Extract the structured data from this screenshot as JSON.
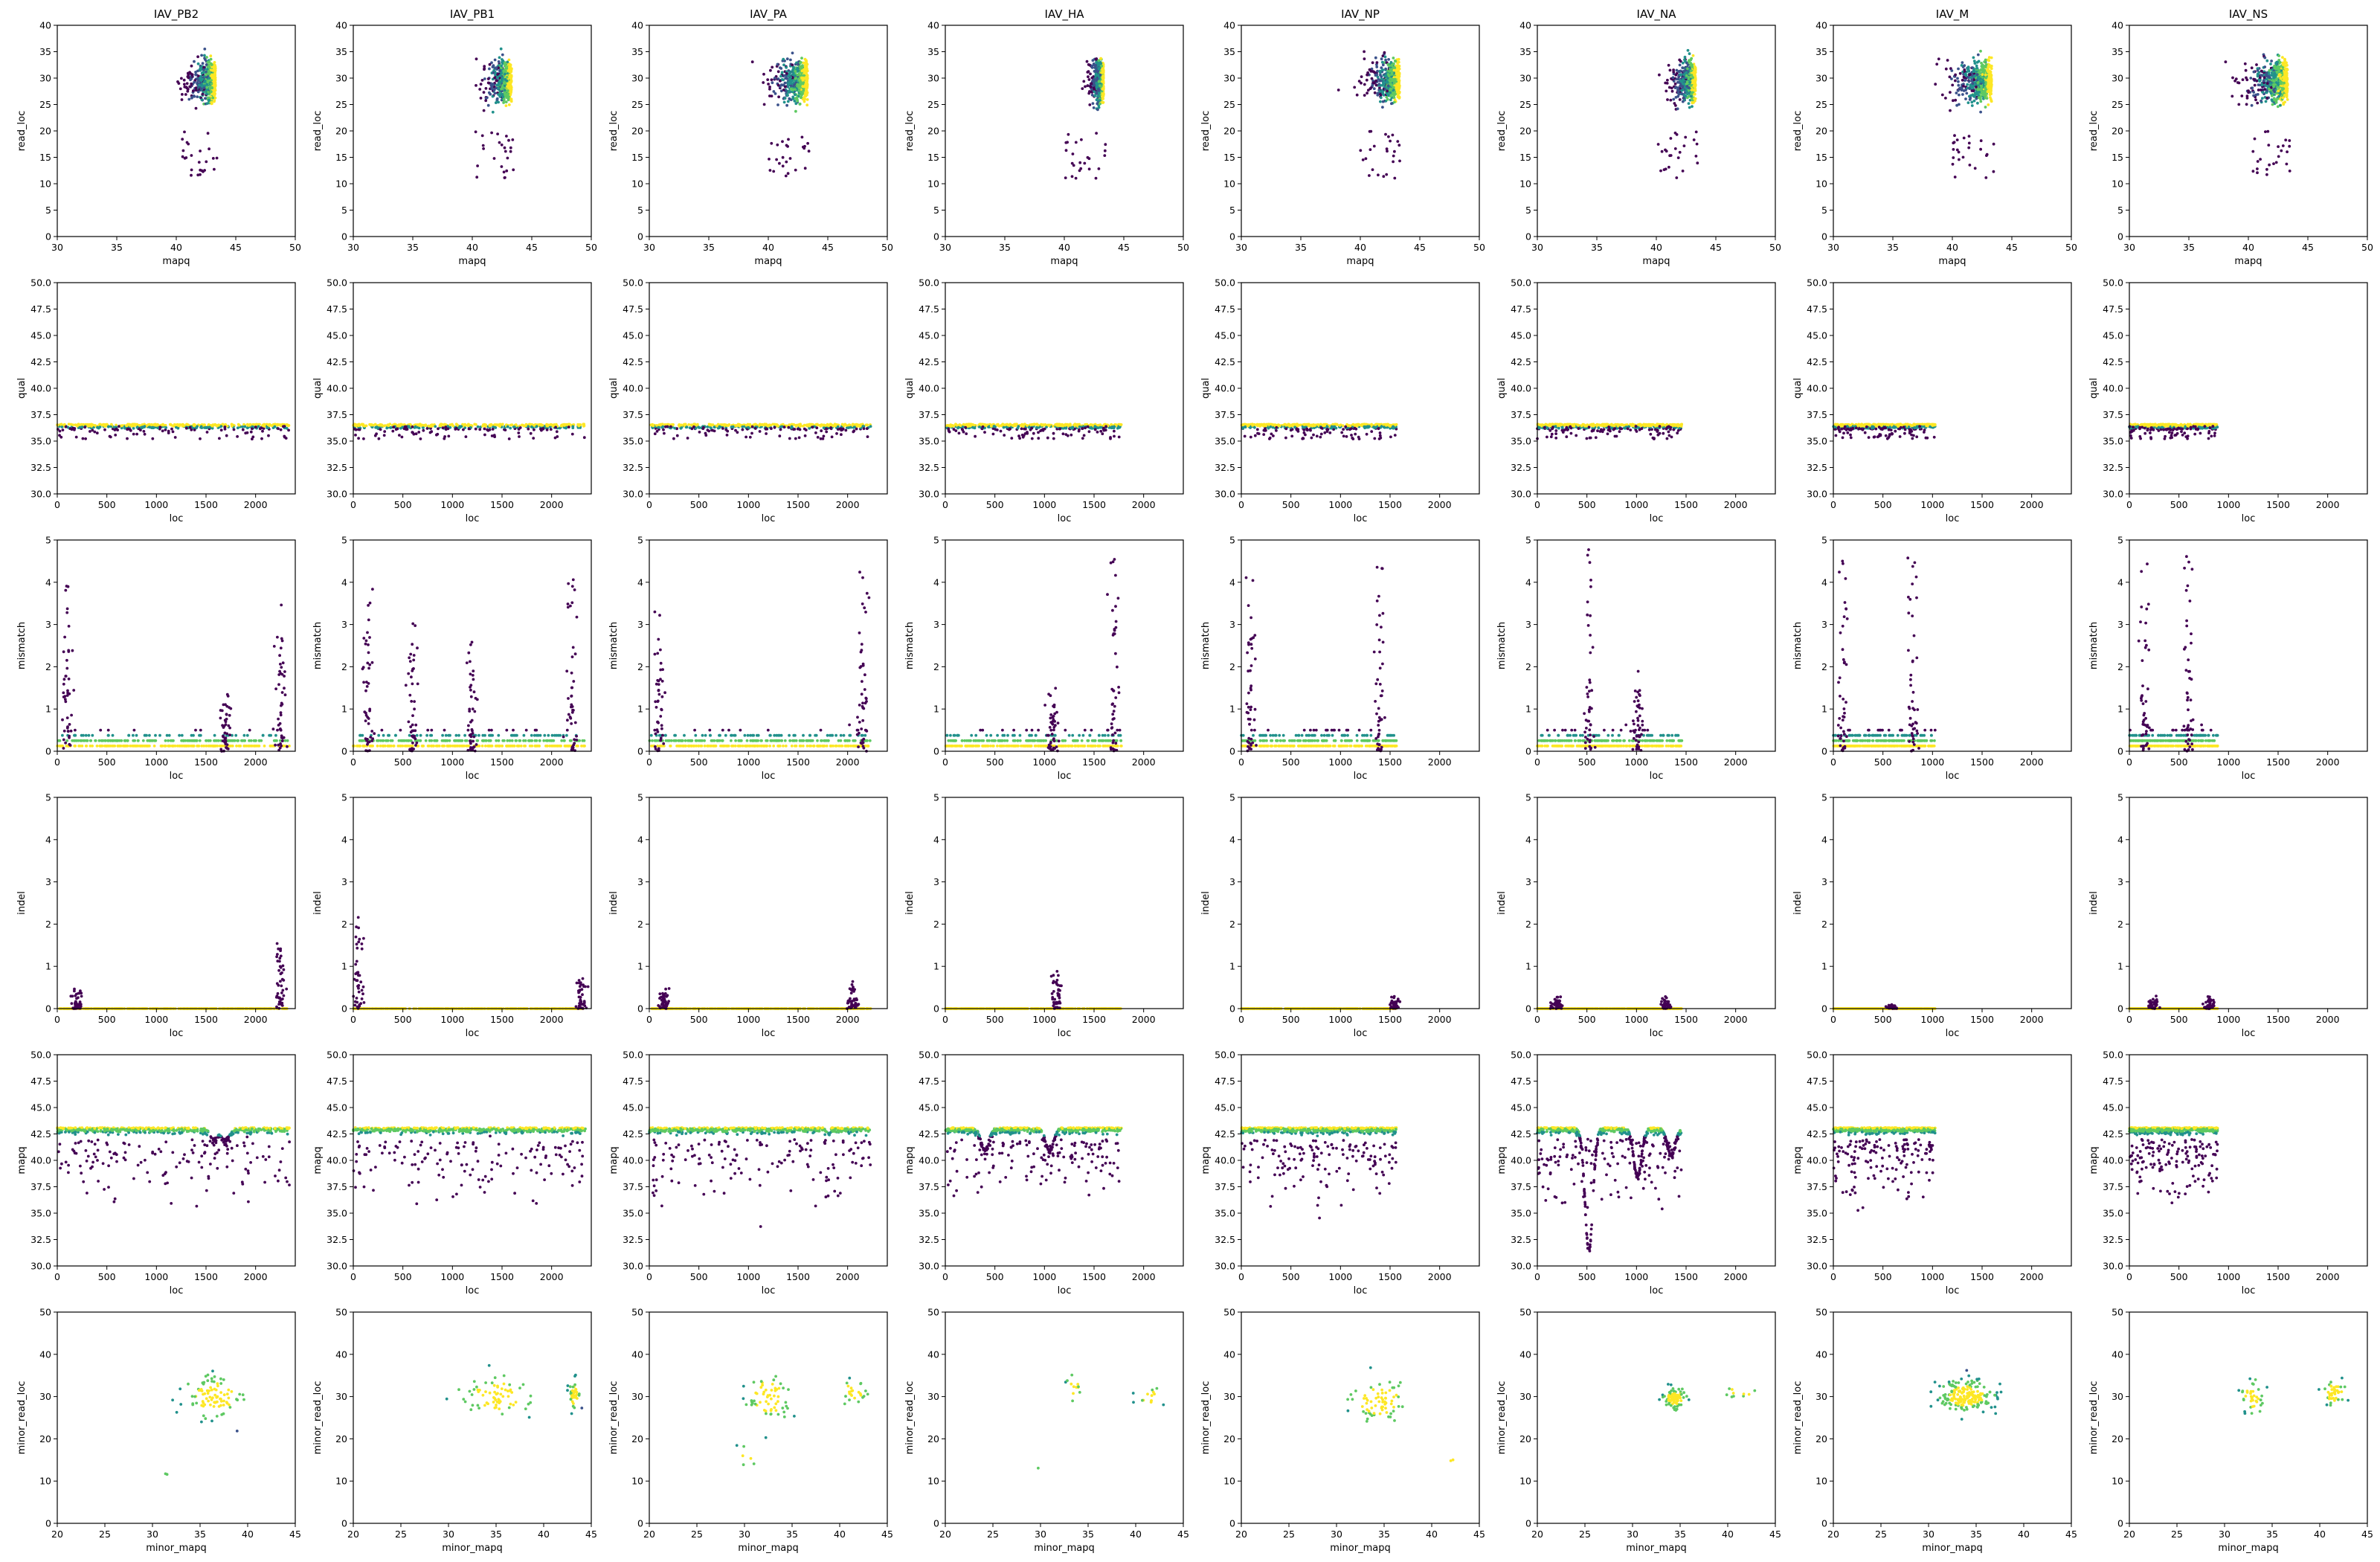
{
  "figure": {
    "columns": [
      "IAV_PB2",
      "IAV_PB1",
      "IAV_PA",
      "IAV_HA",
      "IAV_NP",
      "IAV_NA",
      "IAV_M",
      "IAV_NS"
    ],
    "segment_lengths": [
      2341,
      2341,
      2233,
      1778,
      1565,
      1458,
      1027,
      890
    ],
    "colormap": [
      "#440154",
      "#3b528b",
      "#21918c",
      "#5ec962",
      "#fde725"
    ]
  },
  "chart_data": [
    {
      "row": "read_loc vs mapq",
      "type": "scatter",
      "xlabel": "mapq",
      "ylabel": "read_loc",
      "xlim": [
        30,
        50
      ],
      "ylim": [
        0,
        40
      ],
      "xticks": [
        30,
        35,
        40,
        45,
        50
      ],
      "yticks": [
        0,
        5,
        10,
        15,
        20,
        25,
        30,
        35,
        40
      ],
      "density": "high near mapq 43, read_loc 30",
      "spread": {
        "IAV_PB2": 0.6,
        "IAV_PB1": 0.6,
        "IAV_PA": 0.8,
        "IAV_HA": 0.3,
        "IAV_NP": 0.7,
        "IAV_NA": 0.5,
        "IAV_M": 0.9,
        "IAV_NS": 0.9
      }
    },
    {
      "row": "qual vs loc",
      "type": "scatter",
      "xlabel": "loc",
      "ylabel": "qual",
      "xlim": [
        0,
        2400
      ],
      "ylim": [
        30,
        50
      ],
      "xticks": [
        0,
        500,
        1000,
        1500,
        2000
      ],
      "yticks": [
        "30.0",
        "32.5",
        "35.0",
        "37.5",
        "40.0",
        "42.5",
        "45.0",
        "47.5",
        "50.0"
      ],
      "band": [
        35.8,
        36.8
      ]
    },
    {
      "row": "mismatch vs loc",
      "type": "scatter",
      "xlabel": "loc",
      "ylabel": "mismatch",
      "xlim": [
        0,
        2400
      ],
      "ylim": [
        0,
        5
      ],
      "xticks": [
        0,
        500,
        1000,
        1500,
        2000
      ],
      "yticks": [
        0,
        1,
        2,
        3,
        4,
        5
      ],
      "peaks": {
        "IAV_PB2": [
          [
            100,
            4.5
          ],
          [
            1700,
            1.4
          ],
          [
            2250,
            3.8
          ]
        ],
        "IAV_PB1": [
          [
            150,
            4.5
          ],
          [
            600,
            3.5
          ],
          [
            1200,
            3.0
          ],
          [
            2200,
            4.2
          ]
        ],
        "IAV_PA": [
          [
            100,
            3.8
          ],
          [
            2150,
            4.8
          ]
        ],
        "IAV_HA": [
          [
            1080,
            1.5
          ],
          [
            1700,
            4.8
          ]
        ],
        "IAV_NP": [
          [
            100,
            4.6
          ],
          [
            1400,
            4.8
          ]
        ],
        "IAV_NA": [
          [
            520,
            5.0
          ],
          [
            1010,
            2.0
          ]
        ],
        "IAV_M": [
          [
            100,
            5.0
          ],
          [
            800,
            5.0
          ]
        ],
        "IAV_NS": [
          [
            150,
            5.0
          ],
          [
            600,
            4.8
          ]
        ]
      }
    },
    {
      "row": "indel vs loc",
      "type": "scatter",
      "xlabel": "loc",
      "ylabel": "indel",
      "xlim": [
        0,
        2400
      ],
      "ylim": [
        0,
        5
      ],
      "xticks": [
        0,
        500,
        1000,
        1500,
        2000
      ],
      "yticks": [
        0,
        1,
        2,
        3,
        4,
        5
      ],
      "peaks": {
        "IAV_PB2": [
          [
            200,
            0.5
          ],
          [
            2250,
            1.8
          ]
        ],
        "IAV_PB1": [
          [
            50,
            2.3
          ],
          [
            2300,
            0.9
          ]
        ],
        "IAV_PA": [
          [
            150,
            0.6
          ],
          [
            2050,
            0.7
          ]
        ],
        "IAV_HA": [
          [
            1120,
            0.9
          ]
        ],
        "IAV_NP": [
          [
            1550,
            0.3
          ]
        ],
        "IAV_NA": [
          [
            200,
            0.3
          ],
          [
            1300,
            0.3
          ]
        ],
        "IAV_M": [
          [
            600,
            0.1
          ]
        ],
        "IAV_NS": [
          [
            250,
            0.3
          ],
          [
            800,
            0.3
          ]
        ]
      }
    },
    {
      "row": "mapq vs loc",
      "type": "scatter",
      "xlabel": "loc",
      "ylabel": "mapq",
      "xlim": [
        0,
        2400
      ],
      "ylim": [
        30,
        50
      ],
      "xticks": [
        0,
        500,
        1000,
        1500,
        2000
      ],
      "yticks": [
        "30.0",
        "32.5",
        "35.0",
        "37.5",
        "40.0",
        "42.5",
        "45.0",
        "47.5",
        "50.0"
      ],
      "dips": {
        "IAV_NA": [
          [
            520,
            31.5
          ],
          [
            1010,
            38.5
          ],
          [
            1350,
            40.5
          ]
        ],
        "IAV_HA": [
          [
            400,
            41.0
          ],
          [
            1050,
            41.0
          ]
        ],
        "IAV_PB2": [
          [
            1580,
            42.0
          ],
          [
            1700,
            42.0
          ]
        ]
      }
    },
    {
      "row": "minor_read_loc vs minor_mapq",
      "type": "scatter",
      "xlabel": "minor_mapq",
      "ylabel": "minor_read_loc",
      "xlim": [
        20,
        45
      ],
      "ylim": [
        0,
        50
      ],
      "xticks": [
        20,
        25,
        30,
        35,
        40,
        45
      ],
      "yticks": [
        0,
        10,
        20,
        30,
        40,
        50
      ],
      "clusters": {
        "IAV_PB2": [
          [
            36.5,
            30,
            2.5,
            4,
            90
          ],
          [
            32,
            12,
            0.5,
            0.5,
            2
          ]
        ],
        "IAV_PB1": [
          [
            35,
            30,
            3,
            4,
            70
          ],
          [
            43.2,
            30,
            0.4,
            3,
            40
          ]
        ],
        "IAV_PA": [
          [
            32.5,
            30,
            1.8,
            5,
            60
          ],
          [
            41.5,
            31,
            1.2,
            2.5,
            25
          ],
          [
            30.5,
            16,
            1,
            3,
            6
          ]
        ],
        "IAV_HA": [
          [
            33.5,
            32,
            0.6,
            2.5,
            12
          ],
          [
            41.5,
            30,
            1.2,
            2,
            14
          ],
          [
            29.5,
            13,
            0.2,
            0.2,
            1
          ]
        ],
        "IAV_NP": [
          [
            34.5,
            29,
            2.5,
            4,
            70
          ],
          [
            42,
            15,
            0.3,
            0.5,
            2
          ]
        ],
        "IAV_NA": [
          [
            34.5,
            29.5,
            1,
            2,
            90
          ],
          [
            41,
            31,
            2,
            1,
            10
          ]
        ],
        "IAV_M": [
          [
            34,
            30,
            2.2,
            3,
            200
          ]
        ],
        "IAV_NS": [
          [
            33,
            30,
            1,
            3,
            40
          ],
          [
            41.5,
            31,
            1,
            2.5,
            40
          ]
        ]
      }
    }
  ]
}
